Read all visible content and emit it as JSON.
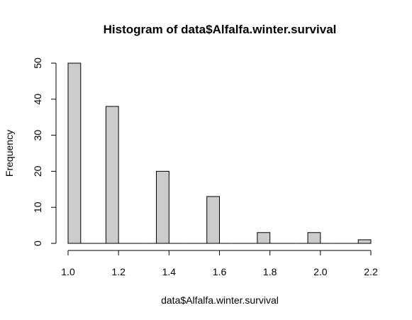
{
  "chart_data": {
    "type": "bar",
    "title": "Histogram of data$Alfalfa.winter.survival",
    "xlabel": "data$Alfalfa.winter.survival",
    "ylabel": "Frequency",
    "bin_width": 0.05,
    "bins": [
      {
        "start": 1.0,
        "end": 1.05,
        "count": 50
      },
      {
        "start": 1.05,
        "end": 1.1,
        "count": 0
      },
      {
        "start": 1.1,
        "end": 1.15,
        "count": 0
      },
      {
        "start": 1.15,
        "end": 1.2,
        "count": 38
      },
      {
        "start": 1.2,
        "end": 1.25,
        "count": 0
      },
      {
        "start": 1.25,
        "end": 1.3,
        "count": 0
      },
      {
        "start": 1.3,
        "end": 1.35,
        "count": 0
      },
      {
        "start": 1.35,
        "end": 1.4,
        "count": 20
      },
      {
        "start": 1.4,
        "end": 1.45,
        "count": 0
      },
      {
        "start": 1.45,
        "end": 1.5,
        "count": 0
      },
      {
        "start": 1.5,
        "end": 1.55,
        "count": 0
      },
      {
        "start": 1.55,
        "end": 1.6,
        "count": 13
      },
      {
        "start": 1.6,
        "end": 1.65,
        "count": 0
      },
      {
        "start": 1.65,
        "end": 1.7,
        "count": 0
      },
      {
        "start": 1.7,
        "end": 1.75,
        "count": 0
      },
      {
        "start": 1.75,
        "end": 1.8,
        "count": 3
      },
      {
        "start": 1.8,
        "end": 1.85,
        "count": 0
      },
      {
        "start": 1.85,
        "end": 1.9,
        "count": 0
      },
      {
        "start": 1.9,
        "end": 1.95,
        "count": 0
      },
      {
        "start": 1.95,
        "end": 2.0,
        "count": 3
      },
      {
        "start": 2.0,
        "end": 2.05,
        "count": 0
      },
      {
        "start": 2.05,
        "end": 2.1,
        "count": 0
      },
      {
        "start": 2.1,
        "end": 2.15,
        "count": 0
      },
      {
        "start": 2.15,
        "end": 2.2,
        "count": 1
      }
    ],
    "xlim": [
      1.0,
      2.2
    ],
    "ylim": [
      0,
      50
    ],
    "x_ticks": [
      1.0,
      1.2,
      1.4,
      1.6,
      1.8,
      2.0,
      2.2
    ],
    "x_tick_labels": [
      "1.0",
      "1.2",
      "1.4",
      "1.6",
      "1.8",
      "2.0",
      "2.2"
    ],
    "y_ticks": [
      0,
      10,
      20,
      30,
      40,
      50
    ],
    "y_tick_labels": [
      "0",
      "10",
      "20",
      "30",
      "40",
      "50"
    ],
    "bar_fill": "#cccccc",
    "bar_stroke": "#000000",
    "grid": false,
    "legend": "none"
  }
}
